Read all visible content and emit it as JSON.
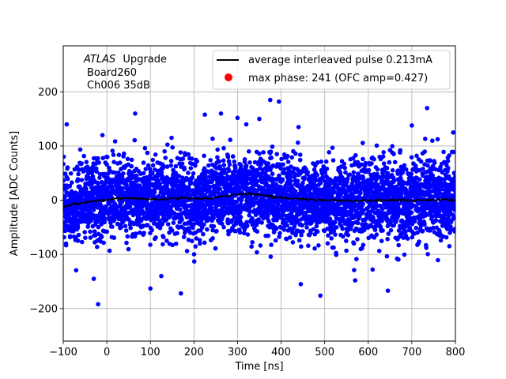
{
  "chart_data": {
    "type": "scatter",
    "xlabel": "Time [ns]",
    "ylabel": "Amplitude [ADC Counts]",
    "xlim": [
      -100,
      800
    ],
    "ylim": [
      -260,
      285
    ],
    "xticks": [
      "−100",
      "0",
      "100",
      "200",
      "300",
      "400",
      "500",
      "600",
      "700",
      "800"
    ],
    "xtick_values": [
      -100,
      0,
      100,
      200,
      300,
      400,
      500,
      600,
      700,
      800
    ],
    "yticks": [
      "−200",
      "−100",
      "0",
      "100",
      "200"
    ],
    "ytick_values": [
      -200,
      -100,
      0,
      100,
      200
    ],
    "grid": true,
    "legend_position": "top-right",
    "annotation": {
      "experiment": "ATLAS",
      "experiment_suffix": "Upgrade",
      "board": "Board260",
      "channel": "Ch006 35dB"
    },
    "series": [
      {
        "name": "average interleaved pulse 0.213mA",
        "kind": "line",
        "color": "#000000",
        "x": [
          -100,
          -75,
          -50,
          -25,
          0,
          25,
          50,
          75,
          100,
          125,
          150,
          175,
          200,
          225,
          250,
          275,
          300,
          325,
          350,
          375,
          400,
          425,
          450,
          475,
          500,
          525,
          550,
          575,
          600,
          625,
          650,
          675,
          700,
          725,
          750,
          775,
          800
        ],
        "y": [
          -12,
          -7,
          -4,
          -1,
          1,
          3,
          4,
          3,
          2,
          2,
          3,
          4,
          3,
          3,
          5,
          8,
          11,
          12,
          10,
          7,
          5,
          3,
          2,
          1,
          0,
          0,
          -1,
          -1,
          0,
          0,
          0,
          0,
          -1,
          0,
          0,
          1,
          0
        ]
      },
      {
        "name": "max phase: 241 (OFC amp=0.427)",
        "kind": "points",
        "color": "#0000ff",
        "noise_sigma": 36,
        "outliers": [
          {
            "x": -92,
            "y": 140
          },
          {
            "x": -20,
            "y": -192
          },
          {
            "x": -30,
            "y": -145
          },
          {
            "x": -10,
            "y": 120
          },
          {
            "x": 65,
            "y": 160
          },
          {
            "x": 100,
            "y": -163
          },
          {
            "x": 125,
            "y": -140
          },
          {
            "x": 170,
            "y": -172
          },
          {
            "x": 225,
            "y": 158
          },
          {
            "x": 262,
            "y": 160
          },
          {
            "x": 300,
            "y": 152
          },
          {
            "x": 320,
            "y": 140
          },
          {
            "x": 350,
            "y": 150
          },
          {
            "x": 375,
            "y": 185
          },
          {
            "x": 395,
            "y": 182
          },
          {
            "x": 440,
            "y": 135
          },
          {
            "x": 445,
            "y": -155
          },
          {
            "x": 490,
            "y": -176
          },
          {
            "x": 570,
            "y": -148
          },
          {
            "x": 645,
            "y": -167
          },
          {
            "x": 735,
            "y": 170
          },
          {
            "x": 795,
            "y": 125
          },
          {
            "x": 700,
            "y": 138
          },
          {
            "x": 610,
            "y": -128
          }
        ]
      },
      {
        "name": "max phase: 241 (OFC amp=0.427)",
        "kind": "marker",
        "color": "#ff0000"
      }
    ]
  }
}
